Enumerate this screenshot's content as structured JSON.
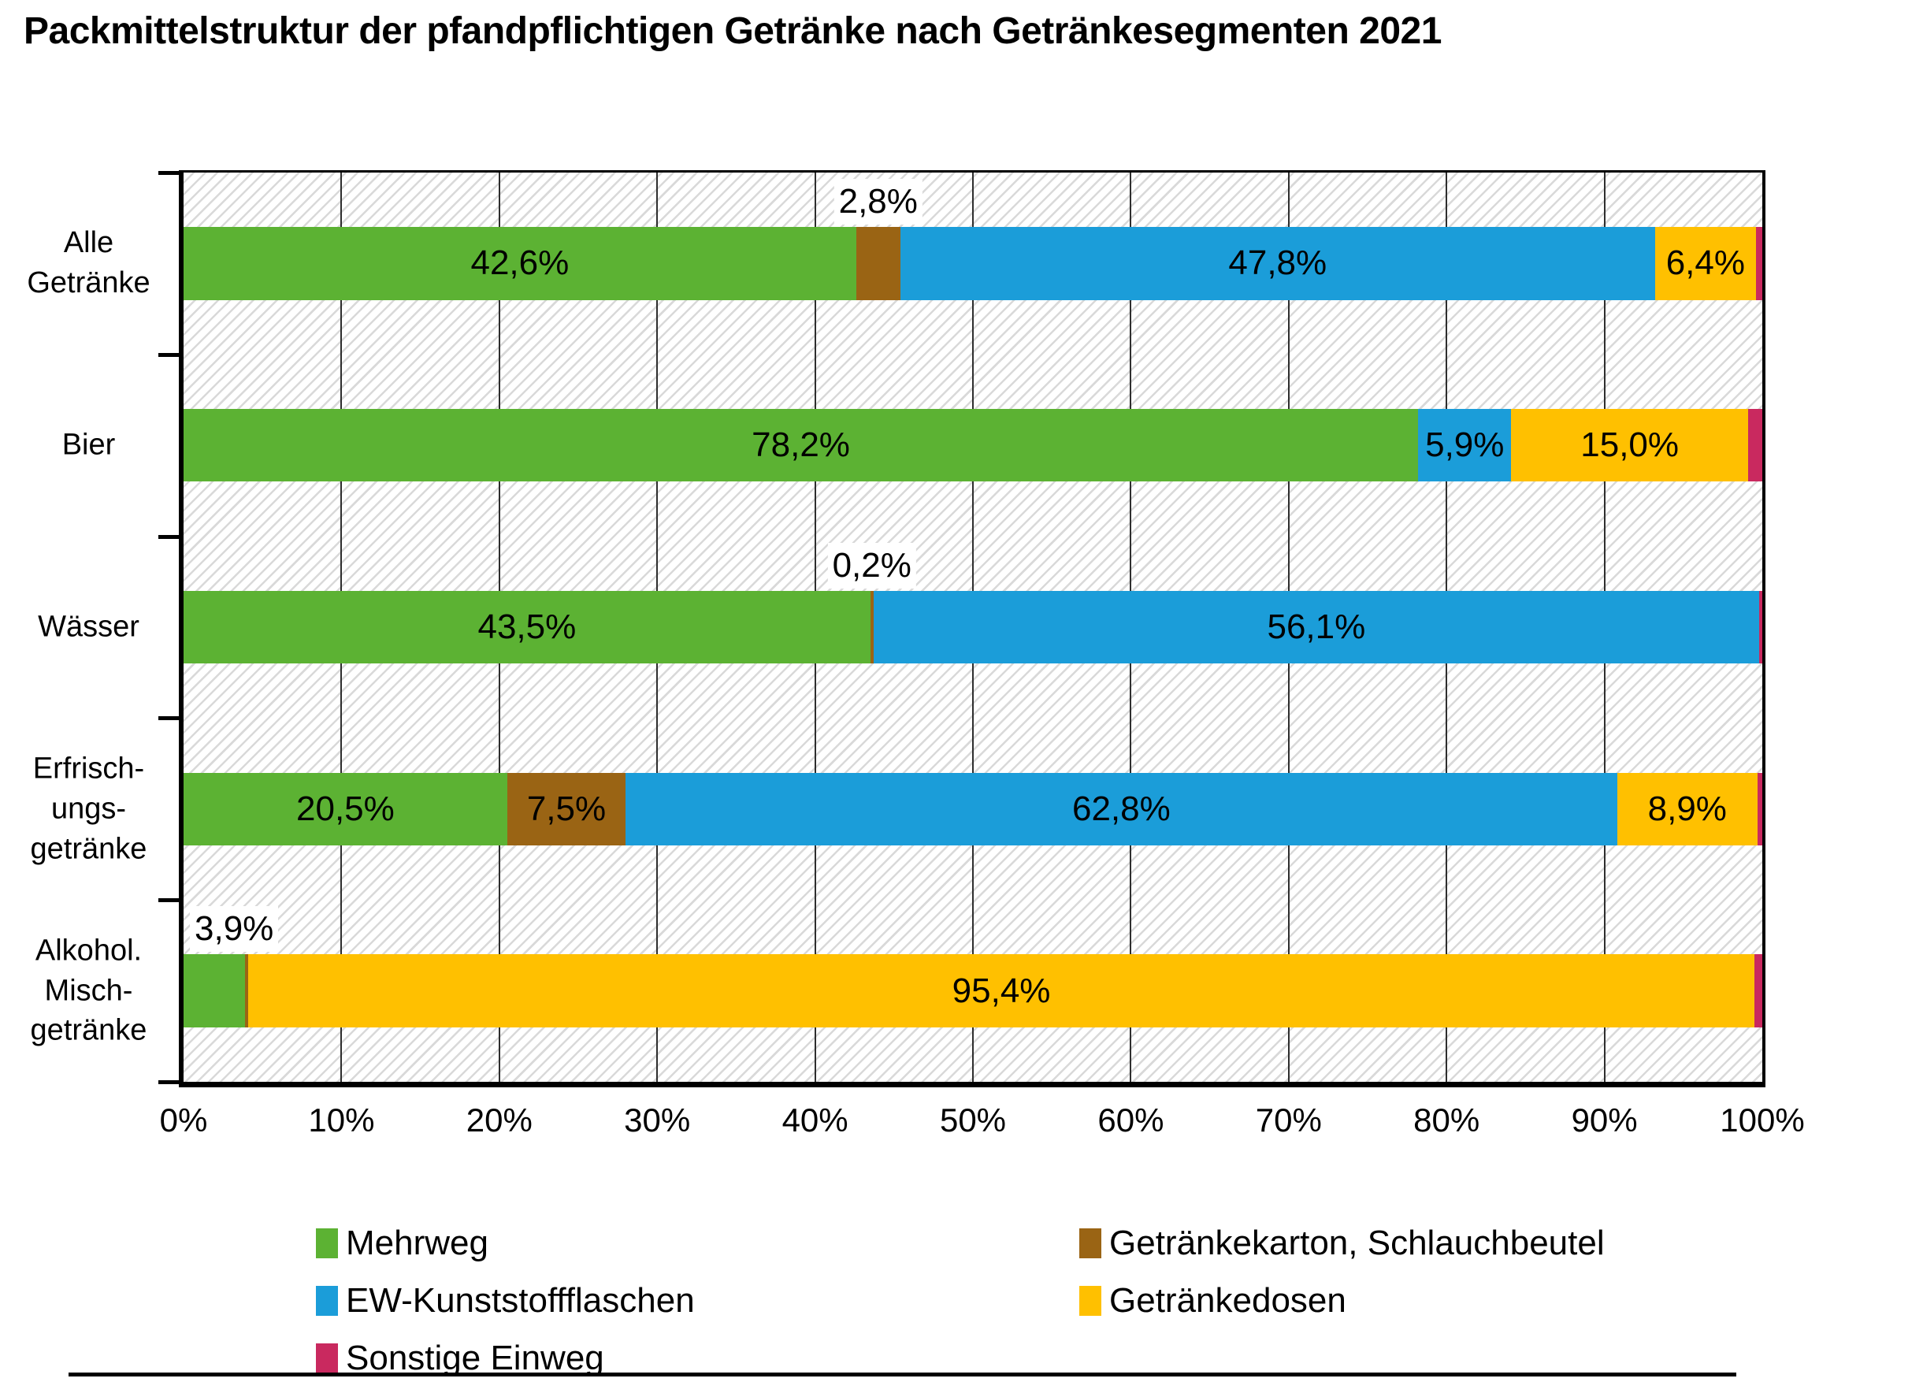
{
  "title": "Packmittelstruktur der pfandpflichtigen Getränke nach Getränkesegmenten 2021",
  "chart_data": {
    "type": "bar",
    "orientation": "horizontal",
    "stacked": true,
    "unit": "%",
    "xlim": [
      0,
      100
    ],
    "x_ticks": [
      "0%",
      "10%",
      "20%",
      "30%",
      "40%",
      "50%",
      "60%",
      "70%",
      "80%",
      "90%",
      "100%"
    ],
    "grid": "vertical-black-lines",
    "plot_background": "diagonal-hatch",
    "legend_position": "bottom-two-columns",
    "legend": [
      {
        "label": "Mehrweg",
        "color": "#5CB233"
      },
      {
        "label": "Getränkekarton, Schlauchbeutel",
        "color": "#9A6414"
      },
      {
        "label": "EW-Kunststoffflaschen",
        "color": "#1B9DD9"
      },
      {
        "label": "Getränkedosen",
        "color": "#FFC000"
      },
      {
        "label": "Sonstige Einweg",
        "color": "#C9295F"
      }
    ],
    "categories": [
      {
        "lines": [
          "Alle",
          "Getränke"
        ]
      },
      {
        "lines": [
          "Bier"
        ]
      },
      {
        "lines": [
          "Wässer"
        ]
      },
      {
        "lines": [
          "Erfrisch-",
          "ungs-",
          "getränke"
        ]
      },
      {
        "lines": [
          "Alkohol.",
          "Misch-",
          "getränke"
        ]
      }
    ],
    "rows": [
      {
        "category": "Alle Getränke",
        "segments": [
          {
            "series": "Mehrweg",
            "value": 42.6,
            "label": "42,6%",
            "label_pos": "inside"
          },
          {
            "series": "Getränkekarton, Schlauchbeutel",
            "value": 2.8,
            "label": "2,8%",
            "label_pos": "above"
          },
          {
            "series": "EW-Kunststoffflaschen",
            "value": 47.8,
            "label": "47,8%",
            "label_pos": "inside"
          },
          {
            "series": "Getränkedosen",
            "value": 6.4,
            "label": "6,4%",
            "label_pos": "inside"
          },
          {
            "series": "Sonstige Einweg",
            "value": 0.4,
            "label": "",
            "label_pos": "none"
          }
        ]
      },
      {
        "category": "Bier",
        "segments": [
          {
            "series": "Mehrweg",
            "value": 78.2,
            "label": "78,2%",
            "label_pos": "inside"
          },
          {
            "series": "Getränkekarton, Schlauchbeutel",
            "value": 0,
            "label": "",
            "label_pos": "none"
          },
          {
            "series": "EW-Kunststoffflaschen",
            "value": 5.9,
            "label": "5,9%",
            "label_pos": "inside"
          },
          {
            "series": "Getränkedosen",
            "value": 15.0,
            "label": "15,0%",
            "label_pos": "inside"
          },
          {
            "series": "Sonstige Einweg",
            "value": 0.9,
            "label": "",
            "label_pos": "none"
          }
        ]
      },
      {
        "category": "Wässer",
        "segments": [
          {
            "series": "Mehrweg",
            "value": 43.5,
            "label": "43,5%",
            "label_pos": "inside"
          },
          {
            "series": "Getränkekarton, Schlauchbeutel",
            "value": 0.2,
            "label": "0,2%",
            "label_pos": "above"
          },
          {
            "series": "EW-Kunststoffflaschen",
            "value": 56.1,
            "label": "56,1%",
            "label_pos": "inside"
          },
          {
            "series": "Getränkedosen",
            "value": 0,
            "label": "",
            "label_pos": "none"
          },
          {
            "series": "Sonstige Einweg",
            "value": 0.2,
            "label": "",
            "label_pos": "none"
          }
        ]
      },
      {
        "category": "Erfrischungsgetränke",
        "segments": [
          {
            "series": "Mehrweg",
            "value": 20.5,
            "label": "20,5%",
            "label_pos": "inside"
          },
          {
            "series": "Getränkekarton, Schlauchbeutel",
            "value": 7.5,
            "label": "7,5%",
            "label_pos": "inside"
          },
          {
            "series": "EW-Kunststoffflaschen",
            "value": 62.8,
            "label": "62,8%",
            "label_pos": "inside"
          },
          {
            "series": "Getränkedosen",
            "value": 8.9,
            "label": "8,9%",
            "label_pos": "inside"
          },
          {
            "series": "Sonstige Einweg",
            "value": 0.3,
            "label": "",
            "label_pos": "none"
          }
        ]
      },
      {
        "category": "Alkohol. Mischgetränke",
        "segments": [
          {
            "series": "Mehrweg",
            "value": 3.9,
            "label": "3,9%",
            "label_pos": "above"
          },
          {
            "series": "Getränkekarton, Schlauchbeutel",
            "value": 0.2,
            "label": "",
            "label_pos": "none"
          },
          {
            "series": "EW-Kunststoffflaschen",
            "value": 0,
            "label": "",
            "label_pos": "none"
          },
          {
            "series": "Getränkedosen",
            "value": 95.4,
            "label": "95,4%",
            "label_pos": "inside"
          },
          {
            "series": "Sonstige Einweg",
            "value": 0.5,
            "label": "",
            "label_pos": "none"
          }
        ]
      }
    ]
  },
  "colors": {
    "axis": "#000000",
    "gridline": "#2e2e2e",
    "hatch_line": "#d9d9d9",
    "text": "#000000",
    "background": "#ffffff"
  }
}
